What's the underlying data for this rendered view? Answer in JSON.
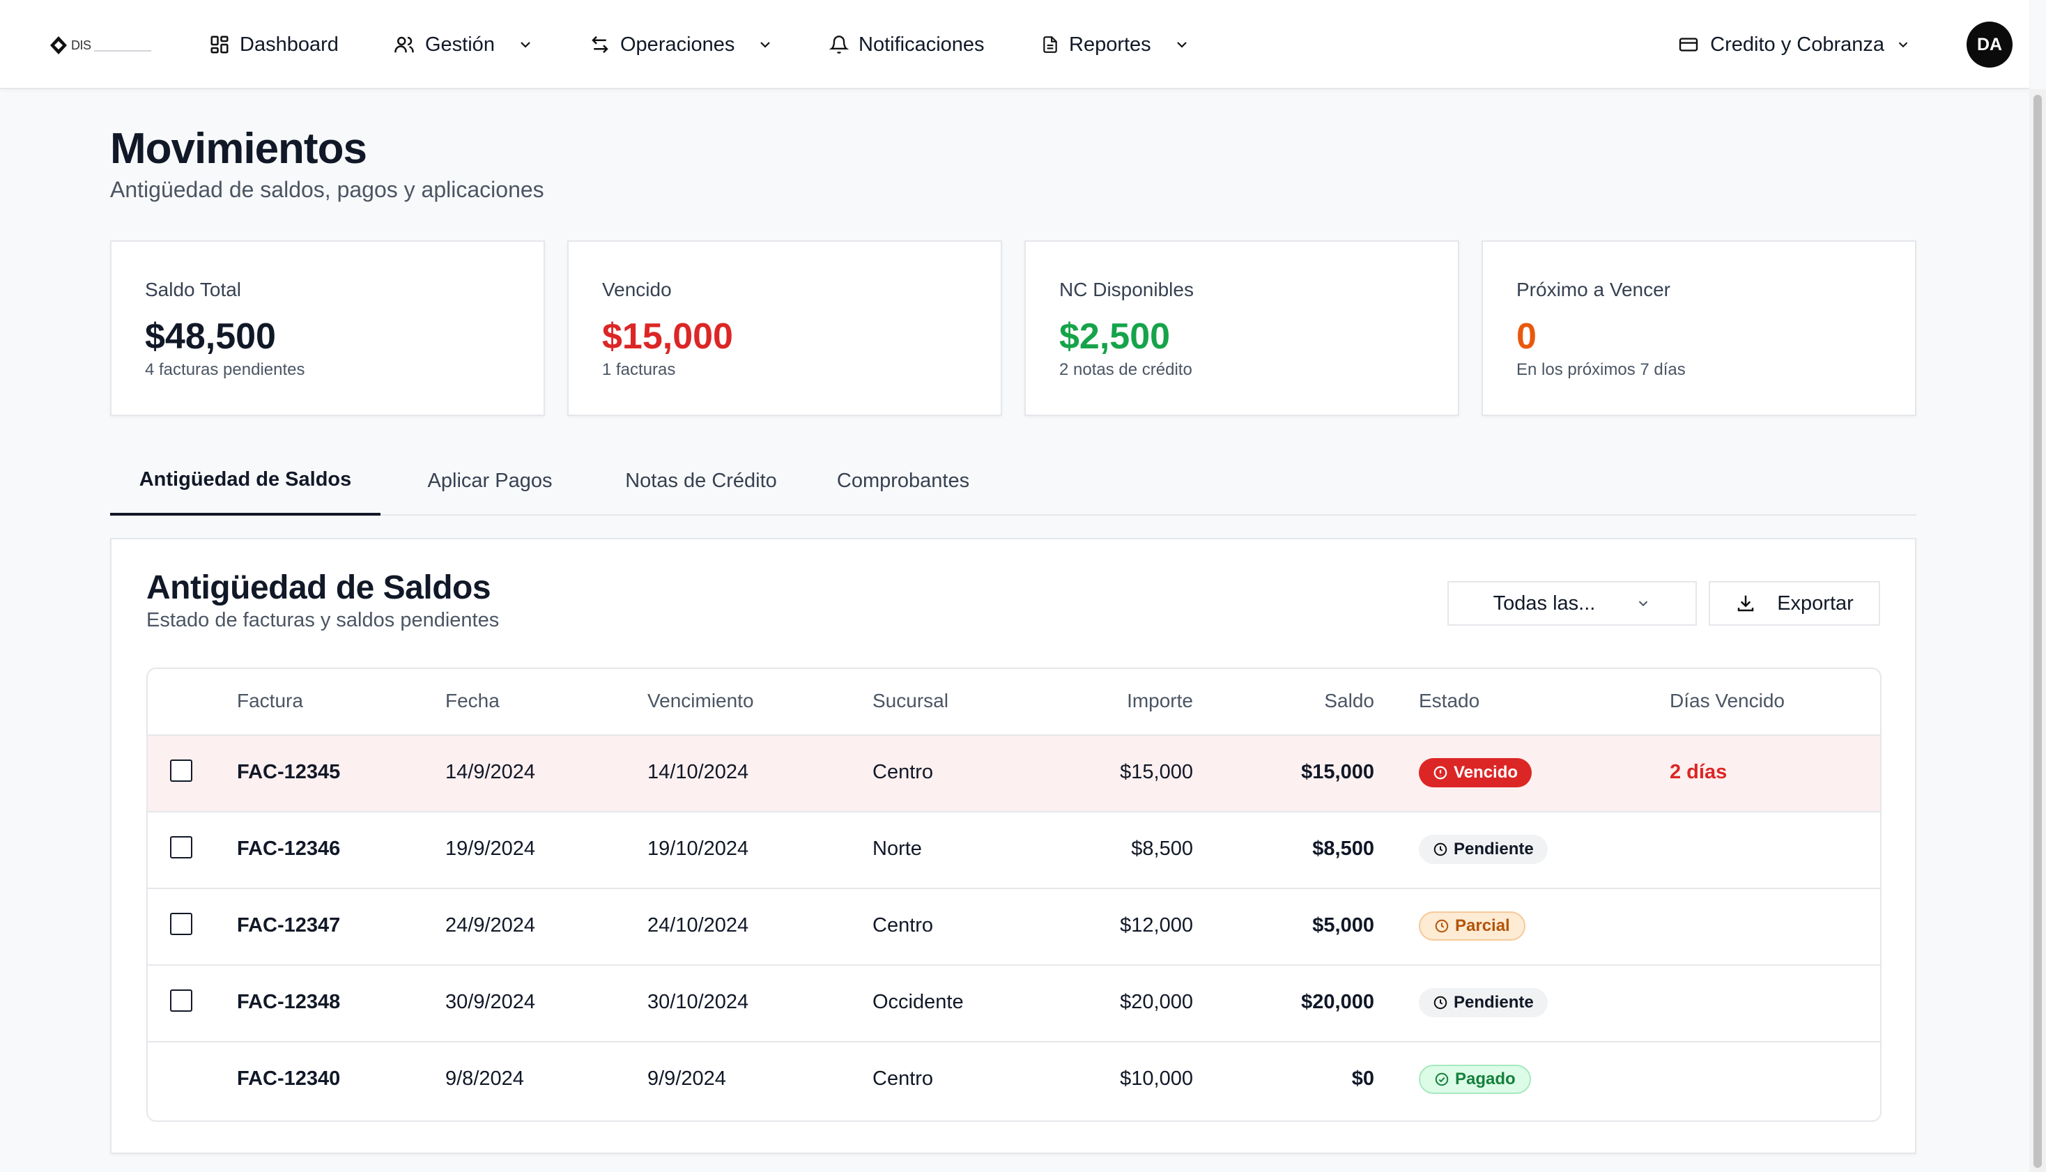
{
  "nav": {
    "logo_text": "DIS",
    "items": [
      {
        "label": "Dashboard",
        "icon": "grid-icon"
      },
      {
        "label": "Gestión",
        "icon": "users-icon"
      },
      {
        "label": "Operaciones",
        "icon": "arrows-swap-icon"
      },
      {
        "label": "Notificaciones",
        "icon": "bell-icon"
      },
      {
        "label": "Reportes",
        "icon": "file-icon"
      }
    ],
    "area": {
      "label": "Credito y Cobranza",
      "icon": "credit-card-icon"
    },
    "avatar": "DA"
  },
  "page": {
    "title": "Movimientos",
    "subtitle": "Antigüedad de saldos, pagos y aplicaciones"
  },
  "stats": [
    {
      "label": "Saldo Total",
      "value": "$48,500",
      "note": "4 facturas pendientes",
      "color": "#111827"
    },
    {
      "label": "Vencido",
      "value": "$15,000",
      "note": "1 facturas",
      "color": "#dc2626"
    },
    {
      "label": "NC Disponibles",
      "value": "$2,500",
      "note": "2 notas de crédito",
      "color": "#16a34a"
    },
    {
      "label": "Próximo a Vencer",
      "value": "0",
      "note": "En los próximos 7 días",
      "color": "#ea580c"
    }
  ],
  "tabs": [
    {
      "label": "Antigüedad de Saldos",
      "active": true
    },
    {
      "label": "Aplicar Pagos",
      "active": false
    },
    {
      "label": "Notas de Crédito",
      "active": false
    },
    {
      "label": "Comprobantes",
      "active": false
    }
  ],
  "panel": {
    "title": "Antigüedad de Saldos",
    "subtitle": "Estado de facturas y saldos pendientes",
    "filter_value": "Todas las...",
    "export_label": "Exportar"
  },
  "table": {
    "headers": {
      "factura": "Factura",
      "fecha": "Fecha",
      "vencimiento": "Vencimiento",
      "sucursal": "Sucursal",
      "importe": "Importe",
      "saldo": "Saldo",
      "estado": "Estado",
      "dias": "Días Vencido"
    },
    "rows": [
      {
        "factura": "FAC-12345",
        "fecha": "14/9/2024",
        "vencimiento": "14/10/2024",
        "sucursal": "Centro",
        "importe": "$15,000",
        "saldo": "$15,000",
        "estado": "Vencido",
        "estado_icon": "alert-circle-icon",
        "dias": "2 días",
        "selectable": true
      },
      {
        "factura": "FAC-12346",
        "fecha": "19/9/2024",
        "vencimiento": "19/10/2024",
        "sucursal": "Norte",
        "importe": "$8,500",
        "saldo": "$8,500",
        "estado": "Pendiente",
        "estado_icon": "clock-icon",
        "dias": "",
        "selectable": true
      },
      {
        "factura": "FAC-12347",
        "fecha": "24/9/2024",
        "vencimiento": "24/10/2024",
        "sucursal": "Centro",
        "importe": "$12,000",
        "saldo": "$5,000",
        "estado": "Parcial",
        "estado_icon": "clock-icon",
        "dias": "",
        "selectable": true
      },
      {
        "factura": "FAC-12348",
        "fecha": "30/9/2024",
        "vencimiento": "30/10/2024",
        "sucursal": "Occidente",
        "importe": "$20,000",
        "saldo": "$20,000",
        "estado": "Pendiente",
        "estado_icon": "clock-icon",
        "dias": "",
        "selectable": true
      },
      {
        "factura": "FAC-12340",
        "fecha": "9/8/2024",
        "vencimiento": "9/9/2024",
        "sucursal": "Centro",
        "importe": "$10,000",
        "saldo": "$0",
        "estado": "Pagado",
        "estado_icon": "check-circle-icon",
        "dias": "",
        "selectable": false
      }
    ]
  }
}
